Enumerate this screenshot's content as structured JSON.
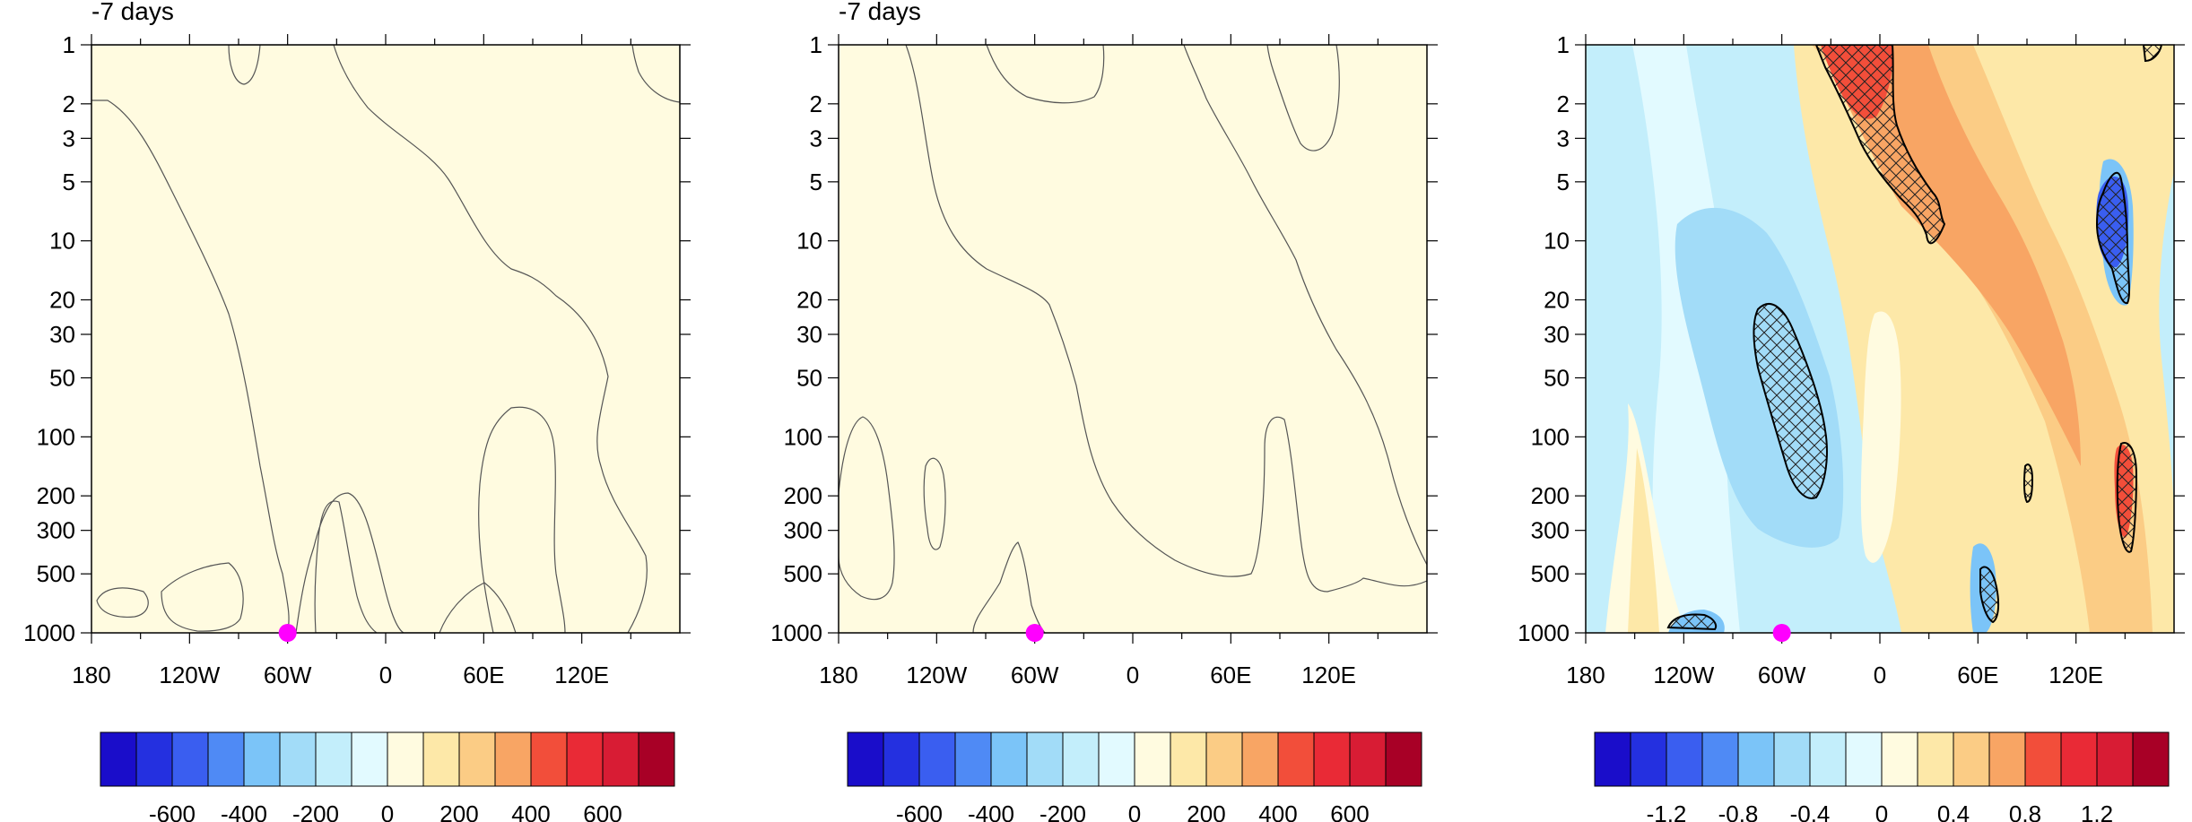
{
  "palette": [
    "#1a0dca",
    "#2430e0",
    "#3a5ef0",
    "#4f8af5",
    "#7bc4f8",
    "#a2dcf8",
    "#c3eefb",
    "#e2faff",
    "#fffbe0",
    "#fde8a8",
    "#fbcc85",
    "#f8a564",
    "#f24e3a",
    "#e92a36",
    "#d81c34",
    "#a80026"
  ],
  "panels": [
    {
      "title": "-7 days",
      "colorbar_labels": [
        "-600",
        "-400",
        "-200",
        "0",
        "200",
        "400",
        "600"
      ]
    },
    {
      "title": "-7 days",
      "colorbar_labels": [
        "-600",
        "-400",
        "-200",
        "0",
        "200",
        "400",
        "600"
      ]
    },
    {
      "title": "",
      "colorbar_labels": [
        "-1.2",
        "-0.8",
        "-0.4",
        "0",
        "0.4",
        "0.8",
        "1.2"
      ]
    }
  ],
  "chart_data": [
    {
      "type": "heatmap",
      "title": "-7 days",
      "x_ticks": [
        "180",
        "120W",
        "60W",
        "0",
        "60E",
        "120E"
      ],
      "x_tick_values": [
        -180,
        -120,
        -60,
        0,
        60,
        120
      ],
      "xlim": [
        -180,
        180
      ],
      "y_ticks": [
        "1",
        "2",
        "3",
        "5",
        "10",
        "20",
        "30",
        "50",
        "100",
        "200",
        "300",
        "500",
        "1000"
      ],
      "y_tick_values": [
        1,
        2,
        3,
        5,
        10,
        20,
        30,
        50,
        100,
        200,
        300,
        500,
        1000
      ],
      "ylim": [
        1,
        1000
      ],
      "y_scale": "log",
      "colorbar_levels": [
        -700,
        -600,
        -500,
        -400,
        -300,
        -200,
        -100,
        0,
        100,
        200,
        300,
        400,
        500,
        600,
        700
      ],
      "colorbar_labels": [
        "-600",
        "-400",
        "-200",
        "0",
        "200",
        "400",
        "600"
      ],
      "marker": {
        "lon": -60,
        "pressure": 1000,
        "color": "#ff00ff"
      }
    },
    {
      "type": "heatmap",
      "title": "-7 days",
      "x_ticks": [
        "180",
        "120W",
        "60W",
        "0",
        "60E",
        "120E"
      ],
      "x_tick_values": [
        -180,
        -120,
        -60,
        0,
        60,
        120
      ],
      "xlim": [
        -180,
        180
      ],
      "y_ticks": [
        "1",
        "2",
        "3",
        "5",
        "10",
        "20",
        "30",
        "50",
        "100",
        "200",
        "300",
        "500",
        "1000"
      ],
      "y_tick_values": [
        1,
        2,
        3,
        5,
        10,
        20,
        30,
        50,
        100,
        200,
        300,
        500,
        1000
      ],
      "ylim": [
        1,
        1000
      ],
      "y_scale": "log",
      "colorbar_levels": [
        -700,
        -600,
        -500,
        -400,
        -300,
        -200,
        -100,
        0,
        100,
        200,
        300,
        400,
        500,
        600,
        700
      ],
      "colorbar_labels": [
        "-600",
        "-400",
        "-200",
        "0",
        "200",
        "400",
        "600"
      ],
      "marker": {
        "lon": -60,
        "pressure": 1000,
        "color": "#ff00ff"
      }
    },
    {
      "type": "heatmap",
      "title": "",
      "x_ticks": [
        "180",
        "120W",
        "60W",
        "0",
        "60E",
        "120E"
      ],
      "x_tick_values": [
        -180,
        -120,
        -60,
        0,
        60,
        120
      ],
      "xlim": [
        -180,
        180
      ],
      "y_ticks": [
        "1",
        "2",
        "3",
        "5",
        "10",
        "20",
        "30",
        "50",
        "100",
        "200",
        "300",
        "500",
        "1000"
      ],
      "y_tick_values": [
        1,
        2,
        3,
        5,
        10,
        20,
        30,
        50,
        100,
        200,
        300,
        500,
        1000
      ],
      "ylim": [
        1,
        1000
      ],
      "y_scale": "log",
      "colorbar_levels": [
        -1.4,
        -1.2,
        -1.0,
        -0.8,
        -0.6,
        -0.4,
        -0.2,
        0,
        0.2,
        0.4,
        0.6,
        0.8,
        1.0,
        1.2,
        1.4
      ],
      "colorbar_labels": [
        "-1.2",
        "-0.8",
        "-0.4",
        "0",
        "0.4",
        "0.8",
        "1.2"
      ],
      "hatching": "significant regions outlined and cross-hatched",
      "marker": {
        "lon": -60,
        "pressure": 1000,
        "color": "#ff00ff"
      }
    }
  ]
}
